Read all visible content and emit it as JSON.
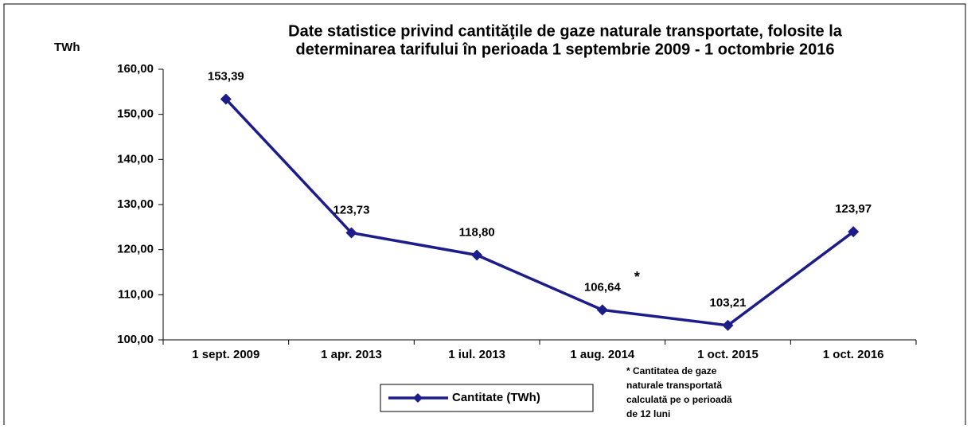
{
  "chart_data": {
    "type": "line",
    "title": [
      "Date statistice privind cantităţile de gaze naturale transportate, folosite la",
      "determinarea tarifului în perioada 1 septembrie 2009 - 1 octombrie 2016"
    ],
    "y_label": "TWh",
    "categories": [
      "1 sept. 2009",
      "1 apr. 2013",
      "1 iul. 2013",
      "1 aug. 2014",
      "1 oct. 2015",
      "1 oct. 2016"
    ],
    "series": [
      {
        "name": "Cantitate (TWh)",
        "color": "#1c1c8a",
        "values": [
          153.39,
          123.73,
          118.8,
          106.64,
          103.21,
          123.97
        ],
        "value_labels": [
          "153,39",
          "123,73",
          "118,80",
          "106,64",
          "103,21",
          "123,97"
        ]
      }
    ],
    "ylim": [
      100,
      160
    ],
    "yticks": [
      {
        "value": 100,
        "label": "100,00"
      },
      {
        "value": 110,
        "label": "110,00"
      },
      {
        "value": 120,
        "label": "120,00"
      },
      {
        "value": 130,
        "label": "130,00"
      },
      {
        "value": 140,
        "label": "140,00"
      },
      {
        "value": 150,
        "label": "150,00"
      },
      {
        "value": 160,
        "label": "160,00"
      }
    ],
    "grid": false,
    "annotation": "*",
    "note": [
      "* Cantitatea de gaze",
      "naturale transportată",
      "calculată pe o perioadă",
      "de 12 luni"
    ]
  }
}
